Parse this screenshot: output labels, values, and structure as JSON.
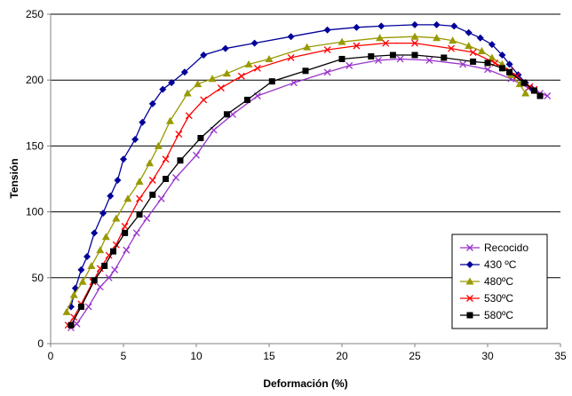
{
  "chart_data": {
    "type": "line",
    "title": "",
    "xlabel": "Deformación (%)",
    "ylabel": "Tensión",
    "xlim": [
      0,
      35
    ],
    "ylim": [
      0,
      250
    ],
    "xticks": [
      "0",
      "5",
      "10",
      "15",
      "20",
      "25",
      "30",
      "35"
    ],
    "yticks": [
      "0",
      "50",
      "100",
      "150",
      "200",
      "250"
    ],
    "grid": "horizontal",
    "legend_position": "bottom-right",
    "series": [
      {
        "name": "Recocido",
        "color": "#9933CC",
        "marker": "x",
        "points": [
          [
            1.4,
            12
          ],
          [
            1.8,
            15
          ],
          [
            2.6,
            28
          ],
          [
            3.4,
            43
          ],
          [
            4.0,
            50
          ],
          [
            4.4,
            56
          ],
          [
            5.2,
            71
          ],
          [
            5.9,
            84
          ],
          [
            6.6,
            95
          ],
          [
            7.6,
            110
          ],
          [
            8.6,
            126
          ],
          [
            10.0,
            143
          ],
          [
            11.2,
            162
          ],
          [
            12.5,
            174
          ],
          [
            14.2,
            188
          ],
          [
            16.7,
            198
          ],
          [
            19.0,
            206
          ],
          [
            20.5,
            211
          ],
          [
            22.5,
            215
          ],
          [
            24.0,
            216
          ],
          [
            26.0,
            215
          ],
          [
            28.3,
            212
          ],
          [
            30.0,
            208
          ],
          [
            31.6,
            201
          ],
          [
            32.8,
            194
          ],
          [
            33.6,
            190
          ],
          [
            34.1,
            188
          ]
        ]
      },
      {
        "name": "430 ºC",
        "color": "#000099",
        "marker": "diamond",
        "points": [
          [
            1.4,
            28
          ],
          [
            1.7,
            42
          ],
          [
            2.1,
            56
          ],
          [
            2.5,
            66
          ],
          [
            3.0,
            84
          ],
          [
            3.6,
            99
          ],
          [
            4.1,
            112
          ],
          [
            4.6,
            124
          ],
          [
            5.0,
            140
          ],
          [
            5.8,
            155
          ],
          [
            6.3,
            168
          ],
          [
            7.0,
            182
          ],
          [
            7.7,
            193
          ],
          [
            8.3,
            198
          ],
          [
            9.2,
            206
          ],
          [
            10.5,
            219
          ],
          [
            12.0,
            224
          ],
          [
            14.0,
            228
          ],
          [
            16.5,
            233
          ],
          [
            19.0,
            238
          ],
          [
            21.0,
            240
          ],
          [
            22.7,
            241
          ],
          [
            25.0,
            242
          ],
          [
            26.5,
            242
          ],
          [
            27.7,
            241
          ],
          [
            28.7,
            236
          ],
          [
            29.5,
            232
          ],
          [
            30.3,
            227
          ],
          [
            31.0,
            219
          ],
          [
            31.5,
            212
          ],
          [
            32.1,
            204
          ],
          [
            32.6,
            198
          ],
          [
            33.0,
            194
          ]
        ]
      },
      {
        "name": "480ºC",
        "color": "#999900",
        "marker": "triangle",
        "points": [
          [
            1.1,
            24
          ],
          [
            1.6,
            37
          ],
          [
            2.2,
            47
          ],
          [
            2.8,
            59
          ],
          [
            3.4,
            71
          ],
          [
            3.8,
            81
          ],
          [
            4.5,
            95
          ],
          [
            5.3,
            110
          ],
          [
            6.1,
            123
          ],
          [
            6.8,
            137
          ],
          [
            7.4,
            150
          ],
          [
            8.2,
            169
          ],
          [
            9.4,
            190
          ],
          [
            10.1,
            197
          ],
          [
            11.1,
            201
          ],
          [
            12.1,
            205
          ],
          [
            13.6,
            212
          ],
          [
            15.0,
            216
          ],
          [
            17.6,
            225
          ],
          [
            20.0,
            229
          ],
          [
            22.6,
            232
          ],
          [
            25.0,
            233
          ],
          [
            26.5,
            232
          ],
          [
            27.6,
            230
          ],
          [
            28.7,
            226
          ],
          [
            29.6,
            222
          ],
          [
            30.3,
            217
          ],
          [
            31.0,
            212
          ],
          [
            31.6,
            204
          ],
          [
            32.2,
            197
          ],
          [
            32.6,
            190
          ]
        ]
      },
      {
        "name": "530ºC",
        "color": "#FF0000",
        "marker": "x",
        "points": [
          [
            1.2,
            14
          ],
          [
            1.6,
            20
          ],
          [
            2.1,
            30
          ],
          [
            2.9,
            47
          ],
          [
            3.4,
            57
          ],
          [
            4.0,
            67
          ],
          [
            4.5,
            75
          ],
          [
            5.1,
            89
          ],
          [
            6.1,
            110
          ],
          [
            7.0,
            124
          ],
          [
            7.9,
            140
          ],
          [
            8.8,
            159
          ],
          [
            9.5,
            173
          ],
          [
            10.5,
            185
          ],
          [
            11.7,
            194
          ],
          [
            13.1,
            203
          ],
          [
            14.2,
            209
          ],
          [
            16.5,
            217
          ],
          [
            19.0,
            223
          ],
          [
            21.0,
            226
          ],
          [
            23.0,
            228
          ],
          [
            25.0,
            228
          ],
          [
            27.5,
            224
          ],
          [
            29.0,
            221
          ],
          [
            30.5,
            213
          ],
          [
            31.5,
            207
          ],
          [
            32.0,
            203
          ],
          [
            32.9,
            195
          ],
          [
            33.2,
            193
          ]
        ]
      },
      {
        "name": "580ºC",
        "color": "#000000",
        "marker": "square",
        "points": [
          [
            1.4,
            14
          ],
          [
            2.1,
            28
          ],
          [
            3.0,
            48
          ],
          [
            3.7,
            59
          ],
          [
            4.3,
            70
          ],
          [
            5.1,
            84
          ],
          [
            6.1,
            98
          ],
          [
            7.0,
            113
          ],
          [
            7.9,
            125
          ],
          [
            8.9,
            139
          ],
          [
            10.3,
            156
          ],
          [
            12.1,
            174
          ],
          [
            13.5,
            185
          ],
          [
            15.2,
            199
          ],
          [
            17.5,
            207
          ],
          [
            20.0,
            216
          ],
          [
            22.0,
            218
          ],
          [
            23.5,
            219
          ],
          [
            25.0,
            219
          ],
          [
            27.0,
            217
          ],
          [
            29.0,
            214
          ],
          [
            30.0,
            213
          ],
          [
            31.0,
            209
          ],
          [
            31.5,
            206
          ],
          [
            32.5,
            198
          ],
          [
            33.2,
            192
          ],
          [
            33.6,
            188
          ]
        ]
      }
    ]
  }
}
